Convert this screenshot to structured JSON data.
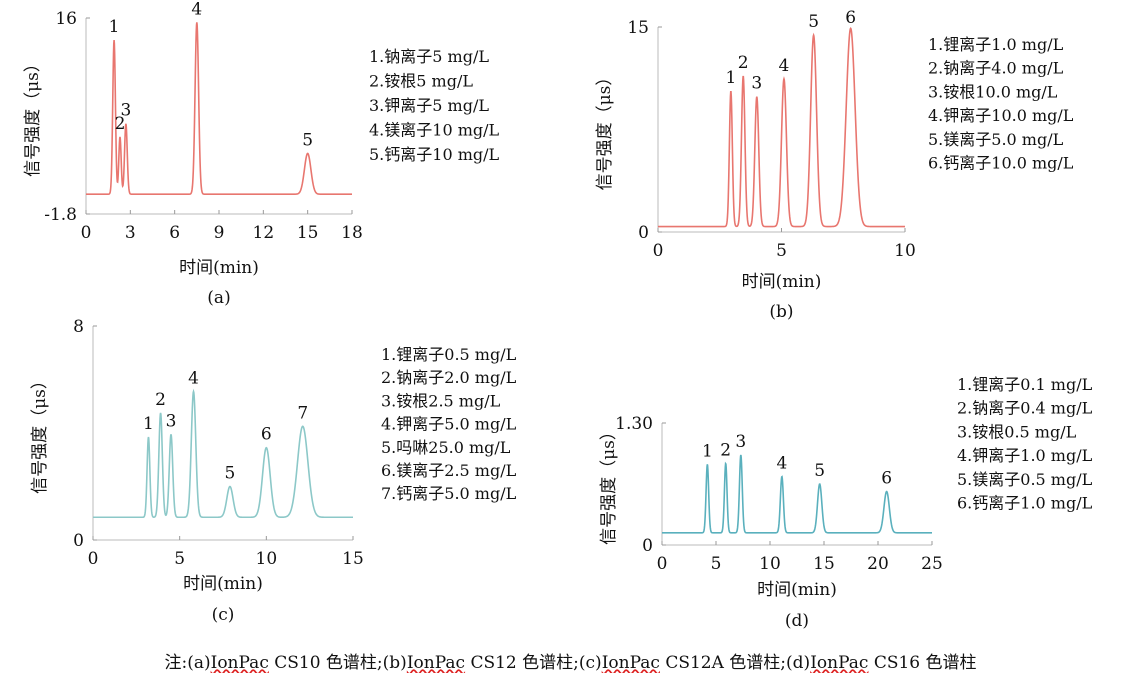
{
  "chart_data": [
    {
      "type": "line",
      "color": "#e8766f",
      "xlabel": "时间(min)",
      "ylabel": "信号强度（μs）",
      "panel_label": "(a)",
      "xlim": [
        0,
        18
      ],
      "ylim": [
        -1.8,
        16
      ],
      "x_ticks": [
        0,
        3,
        6,
        9,
        12,
        15,
        18
      ],
      "y_ticks": [
        -1.8,
        16
      ],
      "y_tick_labels": [
        "-1.8",
        "16"
      ],
      "baseline": 0,
      "peaks": [
        {
          "label": "1",
          "x": 1.9,
          "height": 14.0,
          "width": 0.09
        },
        {
          "label": "2",
          "x": 2.3,
          "height": 5.2,
          "width": 0.08
        },
        {
          "label": "3",
          "x": 2.7,
          "height": 6.4,
          "width": 0.09
        },
        {
          "label": "4",
          "x": 7.5,
          "height": 15.6,
          "width": 0.12
        },
        {
          "label": "5",
          "x": 15.0,
          "height": 3.7,
          "width": 0.22
        }
      ],
      "legend": [
        "1.钠离子5 mg/L",
        "2.铵根5 mg/L",
        "3.钾离子5 mg/L",
        "4.镁离子10 mg/L",
        "5.钙离子10 mg/L"
      ]
    },
    {
      "type": "line",
      "color": "#e8766f",
      "xlabel": "时间(min)",
      "ylabel": "信号强度（μs）",
      "panel_label": "(b)",
      "xlim": [
        0,
        10
      ],
      "ylim": [
        0,
        15
      ],
      "x_ticks": [
        0,
        5,
        10
      ],
      "y_ticks": [
        0,
        15
      ],
      "y_tick_labels": [
        "0",
        "15"
      ],
      "baseline": 0.4,
      "peaks": [
        {
          "label": "1",
          "x": 2.95,
          "height": 9.9,
          "width": 0.06
        },
        {
          "label": "2",
          "x": 3.45,
          "height": 11.0,
          "width": 0.07
        },
        {
          "label": "3",
          "x": 4.0,
          "height": 9.5,
          "width": 0.08
        },
        {
          "label": "4",
          "x": 5.1,
          "height": 10.8,
          "width": 0.1
        },
        {
          "label": "5",
          "x": 6.3,
          "height": 14.0,
          "width": 0.12
        },
        {
          "label": "6",
          "x": 7.8,
          "height": 14.5,
          "width": 0.18
        }
      ],
      "legend": [
        "1.锂离子1.0 mg/L",
        "2.钠离子4.0 mg/L",
        "3.铵根10.0 mg/L",
        "4.钾离子10.0 mg/L",
        "5.镁离子5.0 mg/L",
        "6.钙离子10.0 mg/L"
      ]
    },
    {
      "type": "line",
      "color": "#8cc8c8",
      "xlabel": "时间(min)",
      "ylabel": "信号强度（μs）",
      "panel_label": "(c)",
      "xlim": [
        0,
        15
      ],
      "ylim": [
        0,
        8
      ],
      "x_ticks": [
        0,
        5,
        10,
        15
      ],
      "y_ticks": [
        0,
        8
      ],
      "y_tick_labels": [
        "0",
        "8"
      ],
      "baseline": 0.85,
      "peaks": [
        {
          "label": "1",
          "x": 3.2,
          "height": 3.0,
          "width": 0.08
        },
        {
          "label": "2",
          "x": 3.9,
          "height": 3.9,
          "width": 0.1
        },
        {
          "label": "3",
          "x": 4.5,
          "height": 3.1,
          "width": 0.1
        },
        {
          "label": "4",
          "x": 5.8,
          "height": 4.7,
          "width": 0.13
        },
        {
          "label": "5",
          "x": 7.9,
          "height": 1.15,
          "width": 0.18
        },
        {
          "label": "6",
          "x": 10.0,
          "height": 2.6,
          "width": 0.22
        },
        {
          "label": "7",
          "x": 12.1,
          "height": 3.4,
          "width": 0.3
        }
      ],
      "legend": [
        "1.锂离子0.5 mg/L",
        "2.钠离子2.0 mg/L",
        "3.铵根2.5 mg/L",
        "4.钾离子5.0 mg/L",
        "5.吗啉25.0 mg/L",
        "6.镁离子2.5 mg/L",
        "7.钙离子5.0 mg/L"
      ]
    },
    {
      "type": "line",
      "color": "#5ab0bd",
      "xlabel": "时间(min)",
      "ylabel": "信号强度（μs）",
      "panel_label": "(d)",
      "xlim": [
        0,
        25
      ],
      "ylim": [
        0,
        1.3
      ],
      "x_ticks": [
        0,
        5,
        10,
        15,
        20,
        25
      ],
      "y_ticks": [
        0,
        1.3
      ],
      "y_tick_labels": [
        "0",
        "1.30"
      ],
      "baseline": 0.13,
      "peaks": [
        {
          "label": "1",
          "x": 4.2,
          "height": 0.73,
          "width": 0.12
        },
        {
          "label": "2",
          "x": 5.9,
          "height": 0.74,
          "width": 0.12
        },
        {
          "label": "3",
          "x": 7.3,
          "height": 0.83,
          "width": 0.13
        },
        {
          "label": "4",
          "x": 11.1,
          "height": 0.6,
          "width": 0.14
        },
        {
          "label": "5",
          "x": 14.6,
          "height": 0.52,
          "width": 0.2
        },
        {
          "label": "6",
          "x": 20.8,
          "height": 0.44,
          "width": 0.25
        }
      ],
      "legend": [
        "1.锂离子0.1 mg/L",
        "2.钠离子0.4 mg/L",
        "3.铵根0.5 mg/L",
        "4.钾离子1.0 mg/L",
        "5.镁离子0.5 mg/L",
        "6.钙离子1.0 mg/L"
      ]
    }
  ],
  "note": {
    "prefix": "注:(a)",
    "items": [
      {
        "brand": "IonPac",
        "model": " CS10 色谱柱;",
        "lead": ""
      },
      {
        "brand": "IonPac",
        "model": " CS12 色谱柱;",
        "lead": "(b)"
      },
      {
        "brand": "IonPac",
        "model": " CS12A 色谱柱;",
        "lead": "(c)"
      },
      {
        "brand": "IonPac",
        "model": " CS16 色谱柱",
        "lead": "(d)"
      }
    ]
  }
}
